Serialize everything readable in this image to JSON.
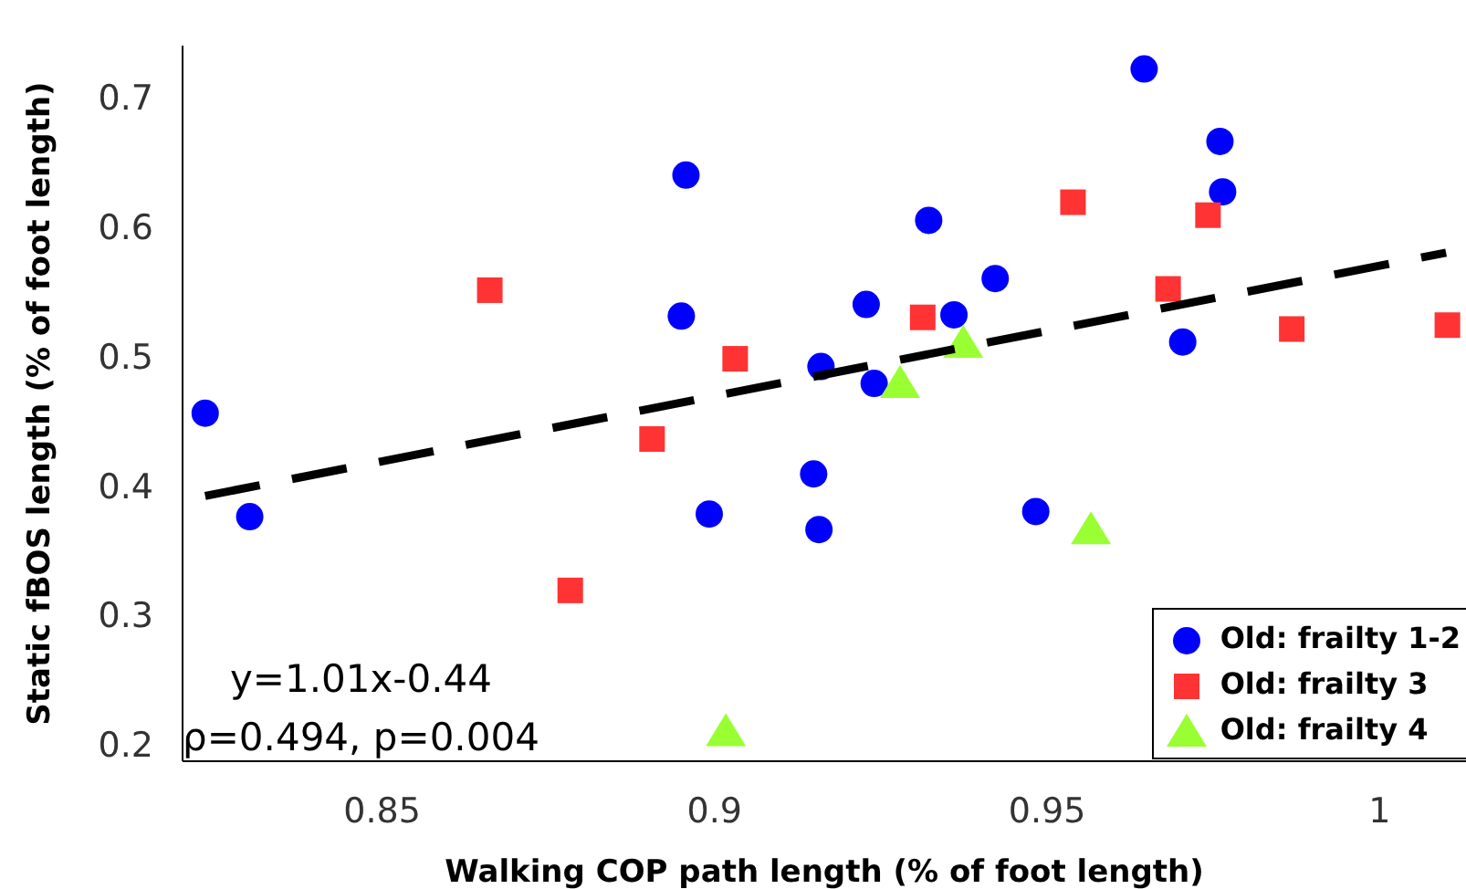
{
  "chart_data": {
    "type": "scatter",
    "xlabel": "Walking COP path length (% of foot length)",
    "ylabel": "Static fBOS length (% of foot length)",
    "xlim": [
      0.82,
      1.013
    ],
    "ylim": [
      0.187,
      0.74
    ],
    "xticks": [
      0.85,
      0.9,
      0.95,
      {
        "value": 1,
        "label": "1"
      }
    ],
    "yticks": [
      0.2,
      0.3,
      0.4,
      0.5,
      0.6,
      0.7
    ],
    "grid": false,
    "legend": "bottom right",
    "annotations": [
      "y=1.01x-0.44",
      "ρ=0.494, p=0.004"
    ],
    "series": [
      {
        "name": "Old: frailty 1-2",
        "color": "#0000ff",
        "marker": "circle",
        "x": [
          0.8234,
          0.8301,
          0.8957,
          0.895,
          0.8992,
          0.916,
          0.9149,
          0.9157,
          0.9646,
          0.976,
          0.9764,
          0.9322,
          0.9422,
          0.9228,
          0.936,
          0.924,
          0.9704,
          0.9483
        ],
        "values": [
          0.456,
          0.376,
          0.64,
          0.531,
          0.378,
          0.492,
          0.409,
          0.366,
          0.722,
          0.666,
          0.627,
          0.605,
          0.56,
          0.54,
          0.532,
          0.479,
          0.511,
          0.38
        ]
      },
      {
        "name": "Old: frailty 3",
        "color": "#ff3333",
        "marker": "square",
        "x": [
          0.8662,
          0.8783,
          0.8906,
          0.9031,
          0.9539,
          0.9742,
          0.9682,
          0.9313,
          0.9868,
          1.0102
        ],
        "values": [
          0.551,
          0.319,
          0.436,
          0.498,
          0.619,
          0.609,
          0.552,
          0.53,
          0.521,
          0.524
        ]
      },
      {
        "name": "Old: frailty 4",
        "color": "#99ff33",
        "marker": "triangle",
        "x": [
          0.9017,
          0.9279,
          0.9374,
          0.9566
        ],
        "values": [
          0.21,
          0.479,
          0.51,
          0.366
        ]
      },
      {
        "type": "line",
        "color": "#000000",
        "line_style": "dashed",
        "marker": "none",
        "x": [
          0.8234,
          1.01
        ],
        "values": [
          0.392,
          0.58
        ]
      }
    ]
  }
}
